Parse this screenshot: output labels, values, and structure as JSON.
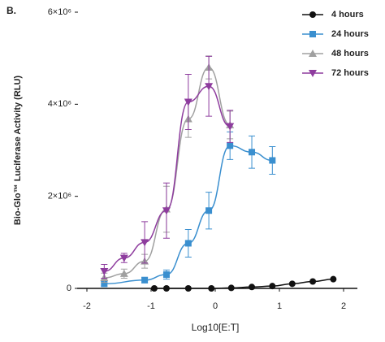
{
  "chart_data": {
    "type": "line",
    "panel_label": "B.",
    "x_label": "Log10[E:T]",
    "y_label": "Bio-Glo™ Luciferase Activity (RLU)",
    "xlim": [
      -2,
      2
    ],
    "xticks": [
      -2,
      -1,
      0,
      1,
      2
    ],
    "ylim": [
      0,
      6000000
    ],
    "yticks": [
      0,
      {
        "value": 2000000,
        "label": "2×10⁶"
      },
      {
        "value": 4000000,
        "label": "4×10⁶"
      },
      {
        "value": 6000000,
        "label": "6×10⁶"
      }
    ],
    "legend": "upper right",
    "series": [
      {
        "name": "4 hours",
        "color": "#111111",
        "marker": "circle",
        "x": [
          -0.95,
          -0.76,
          -0.42,
          -0.06,
          0.25,
          0.57,
          0.89,
          1.2,
          1.52,
          1.84
        ],
        "values": [
          0,
          0,
          0,
          0,
          10000,
          30000,
          50000,
          100000,
          150000,
          200000
        ]
      },
      {
        "name": "24 hours",
        "color": "#3a8fcf",
        "marker": "square",
        "x": [
          -1.73,
          -1.1,
          -0.76,
          -0.42,
          -0.1,
          0.23,
          0.57,
          0.89
        ],
        "values": [
          100000,
          180000,
          300000,
          980000,
          1690000,
          3100000,
          2960000,
          2780000
        ],
        "errors": [
          50000,
          60000,
          100000,
          300000,
          400000,
          300000,
          350000,
          300000
        ]
      },
      {
        "name": "48 hours",
        "color": "#a0a0a0",
        "marker": "triangle",
        "x": [
          -1.73,
          -1.42,
          -1.1,
          -0.76,
          -0.42,
          -0.1,
          0.23
        ],
        "values": [
          230000,
          320000,
          590000,
          1720000,
          3680000,
          4800000,
          3550000
        ],
        "errors": [
          100000,
          100000,
          150000,
          500000,
          400000,
          250000,
          300000
        ]
      },
      {
        "name": "72 hours",
        "color": "#8e3c9e",
        "marker": "triangle-down",
        "x": [
          -1.73,
          -1.42,
          -1.1,
          -0.76,
          -0.42,
          -0.1,
          0.23
        ],
        "values": [
          370000,
          660000,
          1000000,
          1690000,
          4050000,
          4390000,
          3520000
        ],
        "errors": [
          150000,
          100000,
          450000,
          600000,
          600000,
          650000,
          350000
        ]
      }
    ]
  }
}
